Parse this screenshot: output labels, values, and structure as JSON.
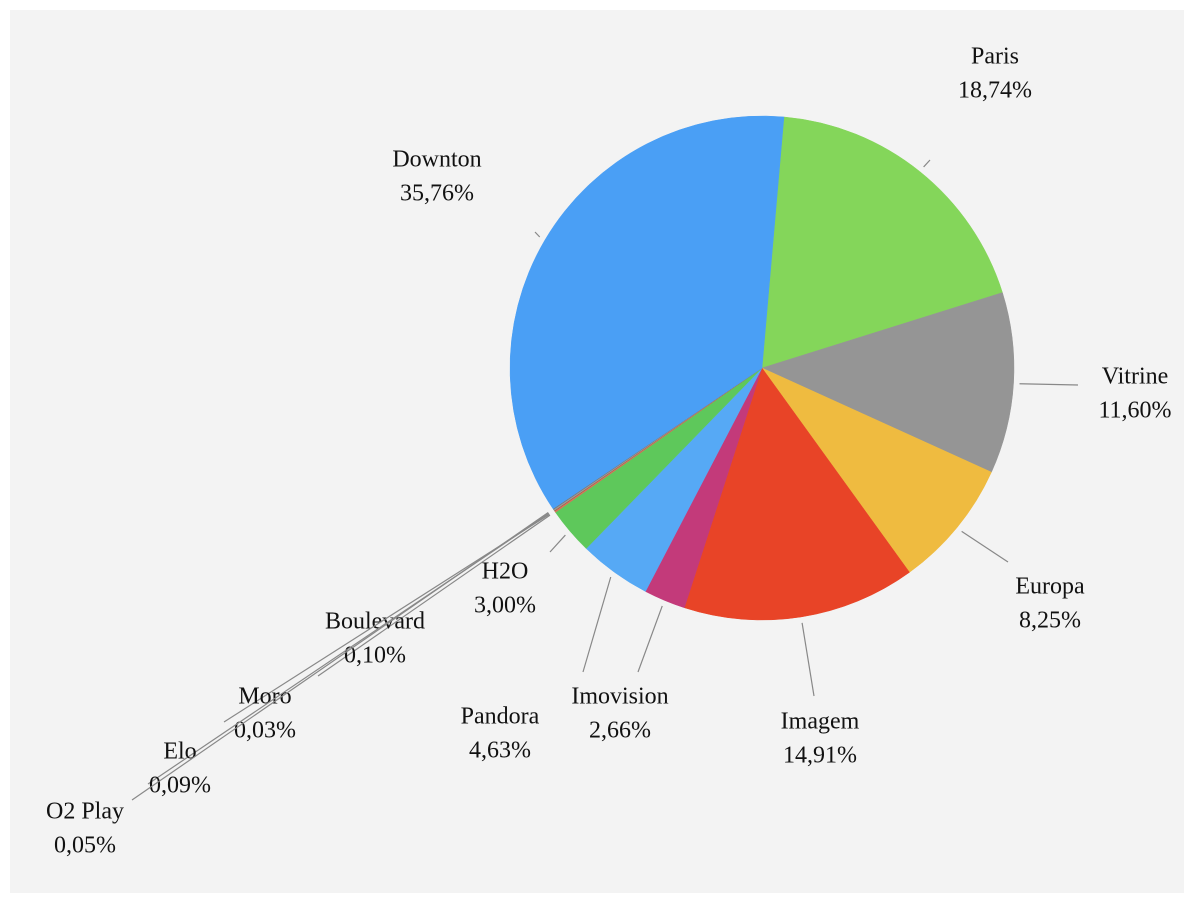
{
  "chart_data": {
    "type": "pie",
    "categories": [
      "Paris",
      "Vitrine",
      "Europa",
      "Imagem",
      "Imovision",
      "Pandora",
      "H2O",
      "Boulevard",
      "Moro",
      "Elo",
      "O2 Play",
      "Downton"
    ],
    "values": [
      18.74,
      11.6,
      8.25,
      14.91,
      2.66,
      4.63,
      3.0,
      0.1,
      0.03,
      0.09,
      0.05,
      35.76
    ],
    "value_labels": [
      "18,74%",
      "11,60%",
      "8,25%",
      "14,91%",
      "2,66%",
      "4,63%",
      "3,00%",
      "0,10%",
      "0,03%",
      "0,09%",
      "0,05%",
      "35,76%"
    ],
    "colors": [
      "#84d65a",
      "#959595",
      "#efbb40",
      "#e84427",
      "#c33a7a",
      "#56a9f5",
      "#5ec85b",
      "#d5735c",
      "#a0522d",
      "#9a9a9a",
      "#777777",
      "#4a9ff5"
    ]
  }
}
